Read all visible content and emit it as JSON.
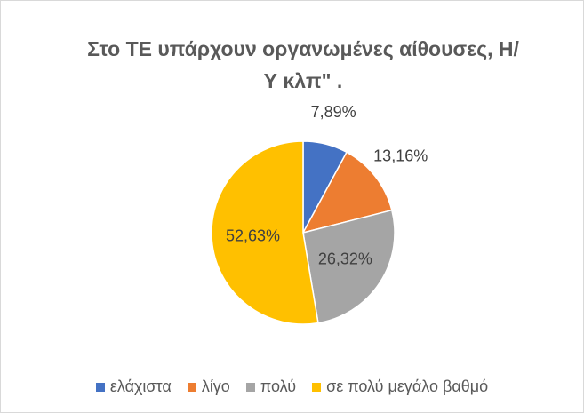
{
  "chart_data": {
    "type": "pie",
    "title": "Στο ΤΕ υπάρχουν οργανωμένες αίθουσες, Η/Υ κλπ\" .",
    "categories": [
      "ελάχιστα",
      "λίγο",
      "πολύ",
      "σε πολύ μεγάλο βαθμό"
    ],
    "values": [
      7.89,
      13.16,
      26.32,
      52.63
    ],
    "value_labels": [
      "7,89%",
      "13,16%",
      "26,32%",
      "52,63%"
    ],
    "colors": [
      "#4472c4",
      "#ed7d31",
      "#a5a5a5",
      "#ffc000"
    ],
    "legend": "bottom"
  }
}
